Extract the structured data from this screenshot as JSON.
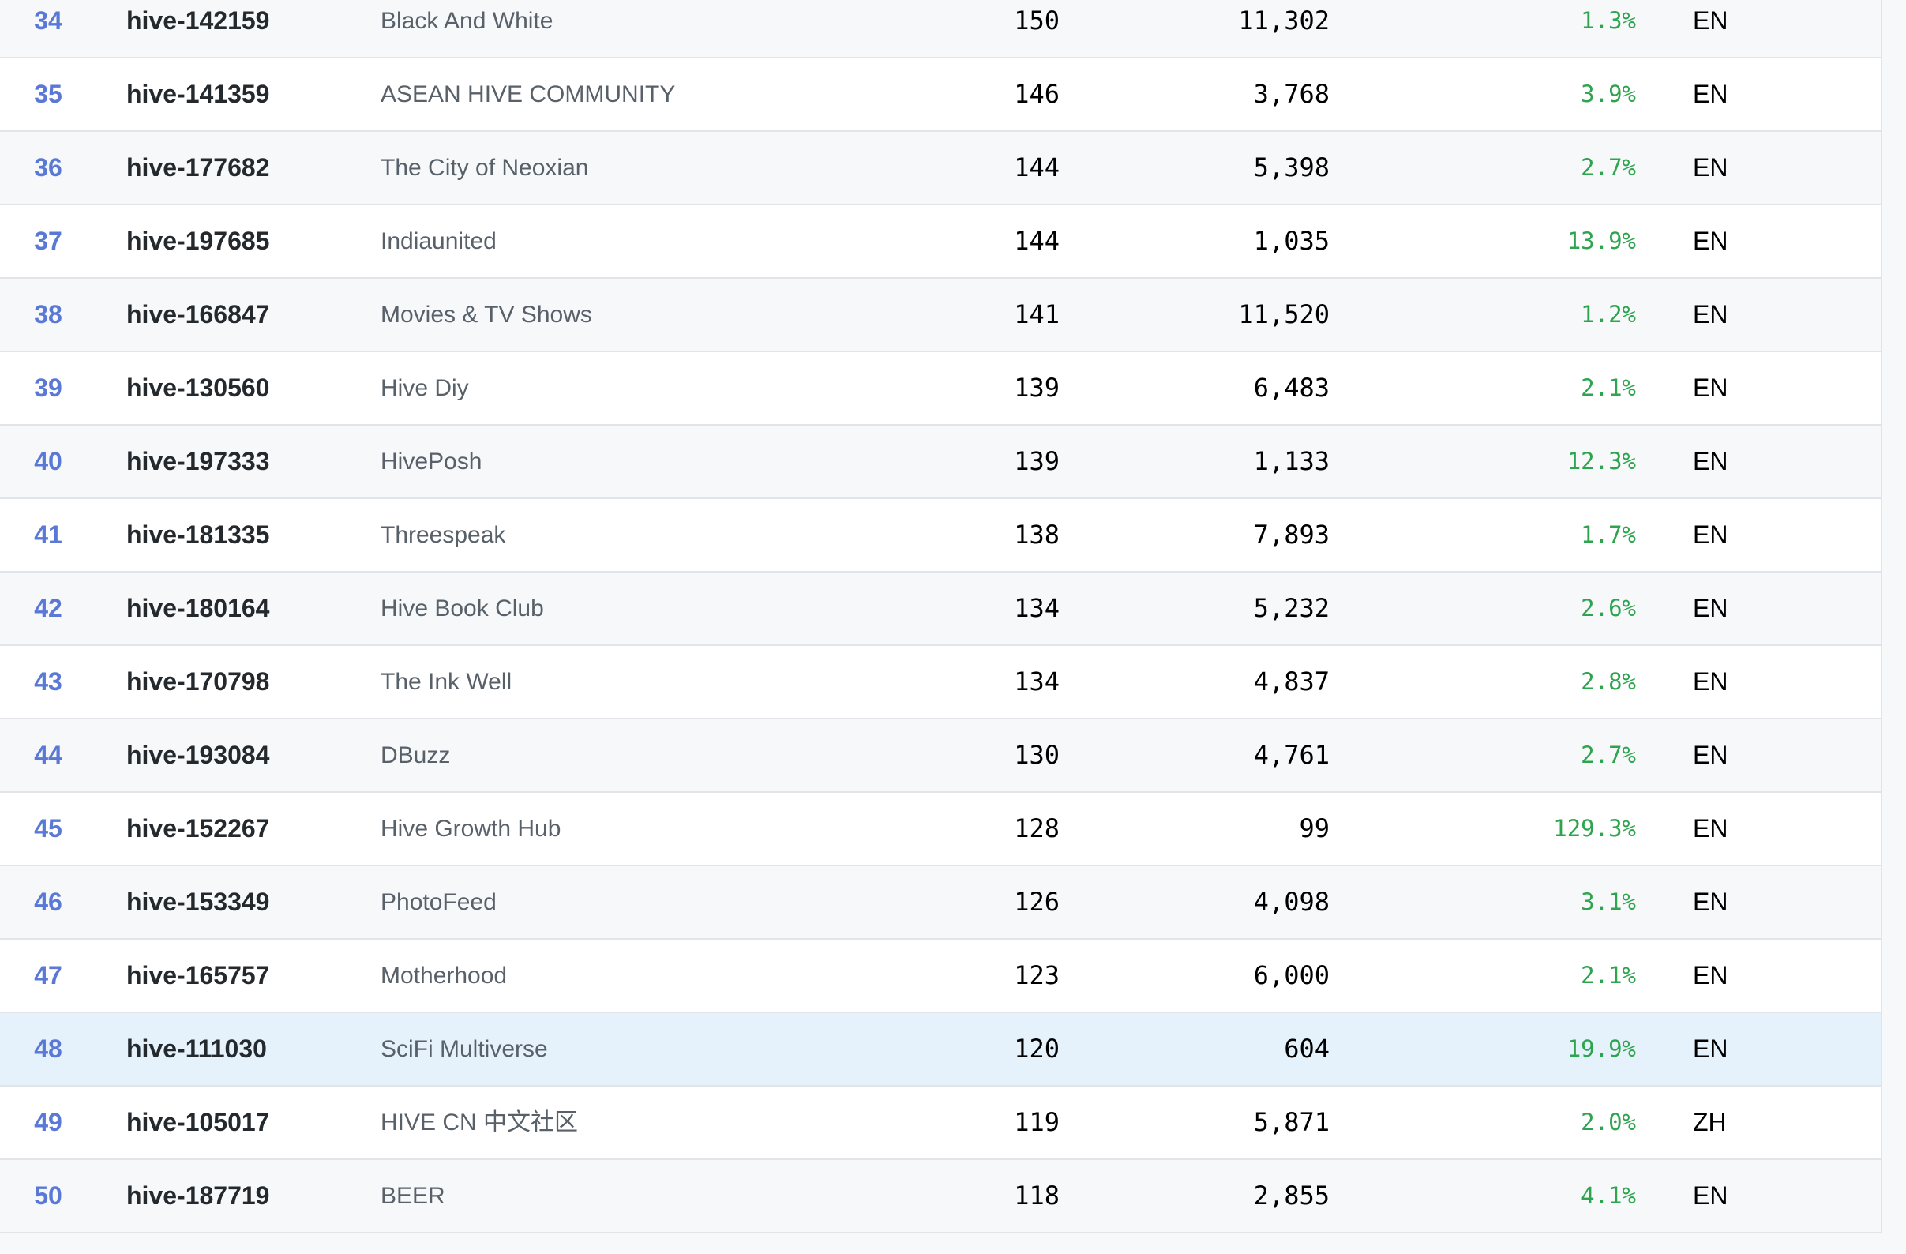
{
  "rows": [
    {
      "rank": "34",
      "slug": "hive-142159",
      "title": "Black And White",
      "subscribers": "150",
      "members": "11,302",
      "ratio": "1.3%",
      "lang": "EN"
    },
    {
      "rank": "35",
      "slug": "hive-141359",
      "title": "ASEAN HIVE COMMUNITY",
      "subscribers": "146",
      "members": "3,768",
      "ratio": "3.9%",
      "lang": "EN"
    },
    {
      "rank": "36",
      "slug": "hive-177682",
      "title": "The City of Neoxian",
      "subscribers": "144",
      "members": "5,398",
      "ratio": "2.7%",
      "lang": "EN"
    },
    {
      "rank": "37",
      "slug": "hive-197685",
      "title": "Indiaunited",
      "subscribers": "144",
      "members": "1,035",
      "ratio": "13.9%",
      "lang": "EN"
    },
    {
      "rank": "38",
      "slug": "hive-166847",
      "title": "Movies & TV Shows",
      "subscribers": "141",
      "members": "11,520",
      "ratio": "1.2%",
      "lang": "EN"
    },
    {
      "rank": "39",
      "slug": "hive-130560",
      "title": "Hive Diy",
      "subscribers": "139",
      "members": "6,483",
      "ratio": "2.1%",
      "lang": "EN"
    },
    {
      "rank": "40",
      "slug": "hive-197333",
      "title": "HivePosh",
      "subscribers": "139",
      "members": "1,133",
      "ratio": "12.3%",
      "lang": "EN"
    },
    {
      "rank": "41",
      "slug": "hive-181335",
      "title": "Threespeak",
      "subscribers": "138",
      "members": "7,893",
      "ratio": "1.7%",
      "lang": "EN"
    },
    {
      "rank": "42",
      "slug": "hive-180164",
      "title": "Hive Book Club",
      "subscribers": "134",
      "members": "5,232",
      "ratio": "2.6%",
      "lang": "EN"
    },
    {
      "rank": "43",
      "slug": "hive-170798",
      "title": "The Ink Well",
      "subscribers": "134",
      "members": "4,837",
      "ratio": "2.8%",
      "lang": "EN"
    },
    {
      "rank": "44",
      "slug": "hive-193084",
      "title": "DBuzz",
      "subscribers": "130",
      "members": "4,761",
      "ratio": "2.7%",
      "lang": "EN"
    },
    {
      "rank": "45",
      "slug": "hive-152267",
      "title": "Hive Growth Hub",
      "subscribers": "128",
      "members": "99",
      "ratio": "129.3%",
      "lang": "EN"
    },
    {
      "rank": "46",
      "slug": "hive-153349",
      "title": "PhotoFeed",
      "subscribers": "126",
      "members": "4,098",
      "ratio": "3.1%",
      "lang": "EN"
    },
    {
      "rank": "47",
      "slug": "hive-165757",
      "title": "Motherhood",
      "subscribers": "123",
      "members": "6,000",
      "ratio": "2.1%",
      "lang": "EN"
    },
    {
      "rank": "48",
      "slug": "hive-111030",
      "title": "SciFi Multiverse",
      "subscribers": "120",
      "members": "604",
      "ratio": "19.9%",
      "lang": "EN"
    },
    {
      "rank": "49",
      "slug": "hive-105017",
      "title": "HIVE CN 中文社区",
      "subscribers": "119",
      "members": "5,871",
      "ratio": "2.0%",
      "lang": "ZH"
    },
    {
      "rank": "50",
      "slug": "hive-187719",
      "title": "BEER",
      "subscribers": "118",
      "members": "2,855",
      "ratio": "4.1%",
      "lang": "EN"
    }
  ],
  "highlighted_rank": "48",
  "colors": {
    "rank": "#5a78d6",
    "slug": "#24292e",
    "title": "#586069",
    "ratio": "#2ea44f",
    "row_alt": "#f6f8fa",
    "row_highlight": "#e6f2fb",
    "border": "#e1e4e8"
  }
}
